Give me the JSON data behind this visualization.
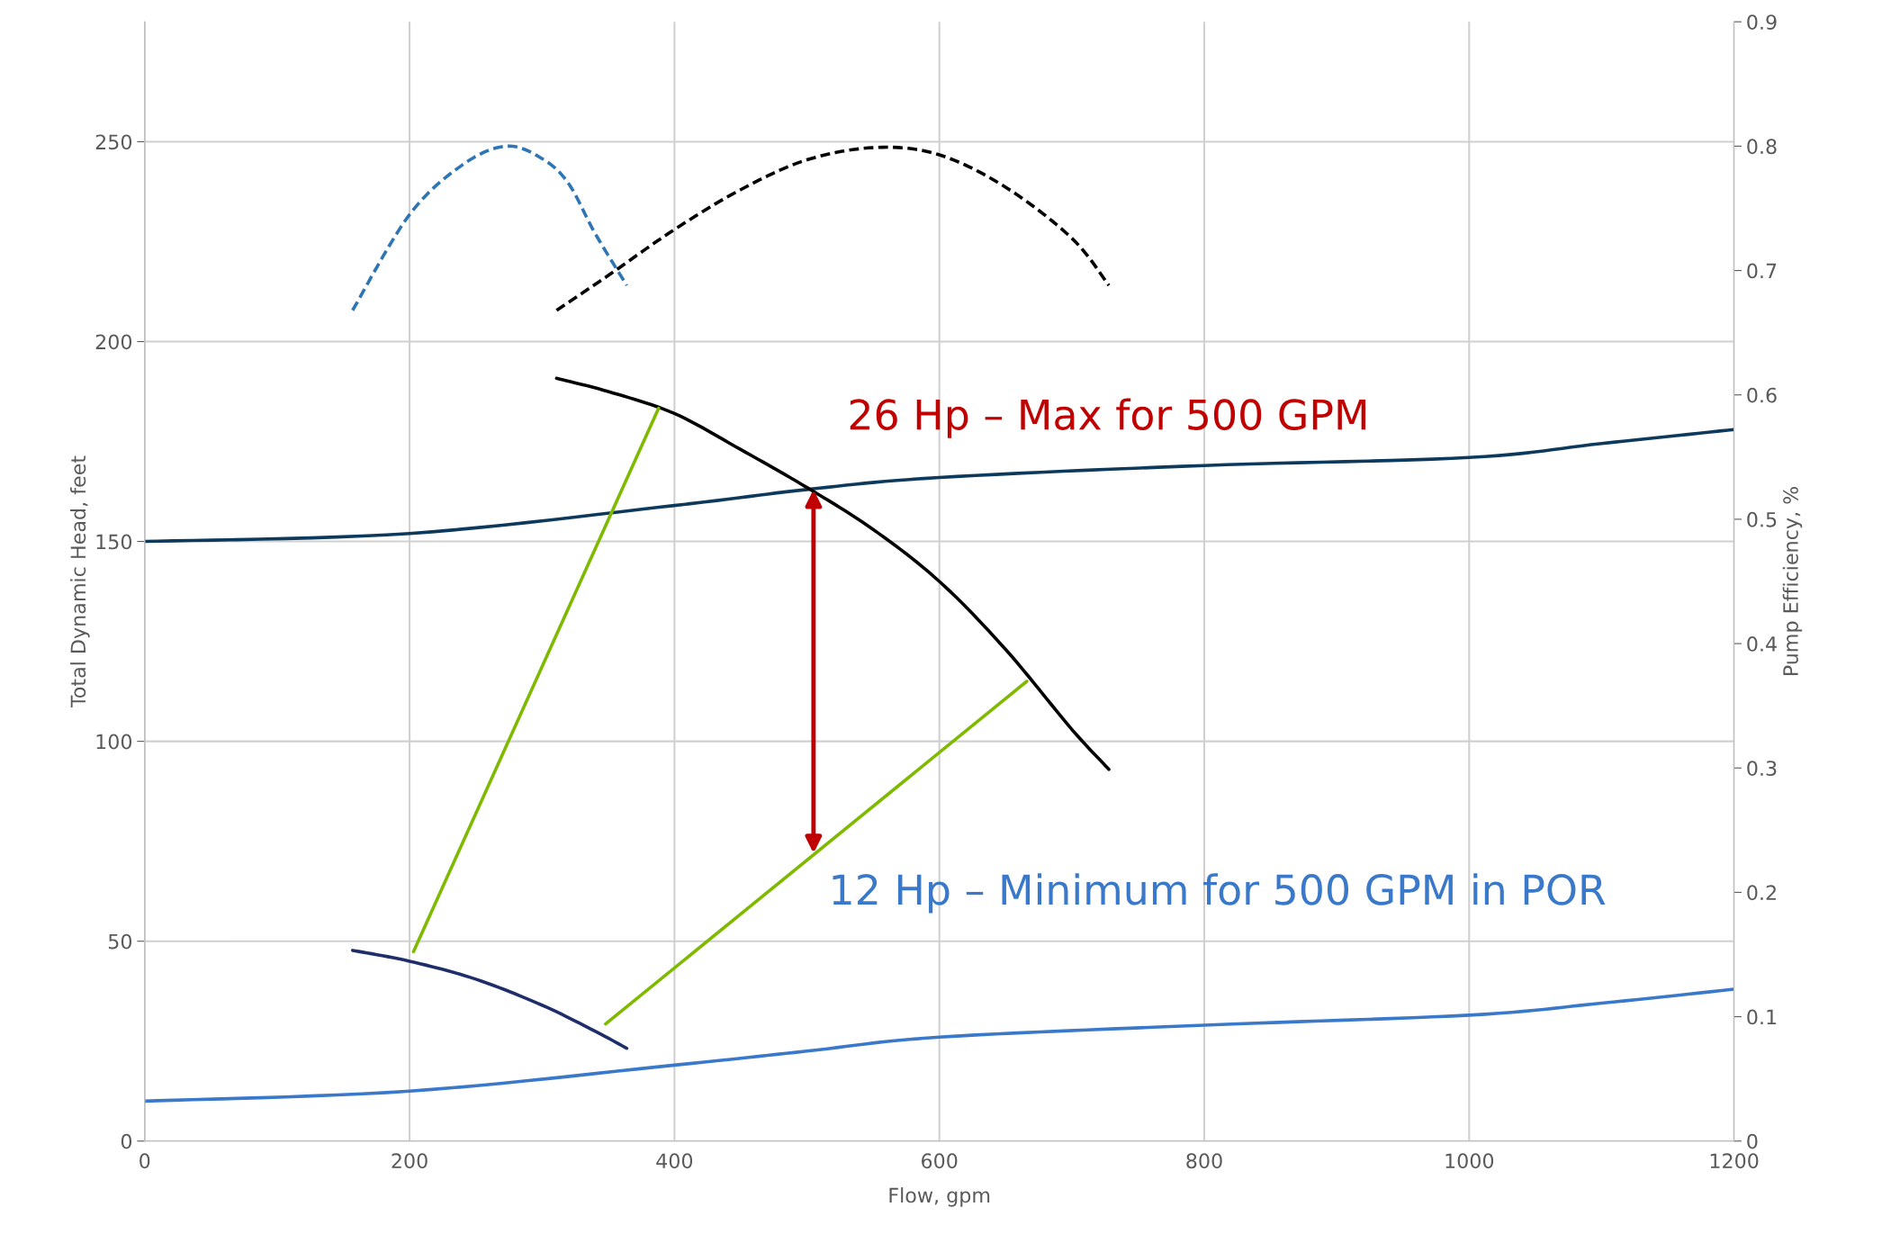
{
  "chart_data": {
    "type": "line",
    "xlabel": "Flow, gpm",
    "ylabel": "Total Dynamic Head, feet",
    "y2label": "Pump Efficiency, %",
    "xlim": [
      0,
      1200
    ],
    "xticks": [
      0,
      200,
      400,
      600,
      800,
      1000,
      1200
    ],
    "ylim": [
      0,
      280
    ],
    "yticks": [
      0,
      50,
      100,
      150,
      200,
      250
    ],
    "y2lim": [
      0,
      0.9
    ],
    "y2ticks": [
      0,
      0.1,
      0.2,
      0.3,
      0.4,
      0.5,
      0.6,
      0.7,
      0.8,
      0.9
    ],
    "grid": true,
    "legend": false,
    "series": [
      {
        "color": "#0d3a5c",
        "x": [
          0,
          200,
          400,
          500,
          600,
          800,
          1000,
          1100,
          1200
        ],
        "values": [
          150,
          152,
          159,
          163,
          166,
          169,
          171,
          174.5,
          178
        ]
      },
      {
        "color": "#3a78c9",
        "x": [
          0,
          200,
          400,
          500,
          600,
          800,
          1000,
          1100,
          1200
        ],
        "values": [
          10,
          12.5,
          19,
          22.5,
          26,
          29,
          31.5,
          34.5,
          38
        ]
      },
      {
        "color": "#000000",
        "x": [
          311,
          350,
          400,
          450,
          500,
          550,
          600,
          650,
          700,
          728
        ],
        "values": [
          190.8,
          187.5,
          182,
          173,
          163.5,
          153,
          140,
          123,
          103,
          93
        ]
      },
      {
        "color": "#1f2d6b",
        "x": [
          157,
          200,
          250,
          300,
          340,
          364
        ],
        "values": [
          47.7,
          45,
          40.5,
          34,
          27.5,
          23.2
        ]
      },
      {
        "axis": "y2",
        "line_style": "dashed",
        "color": "#2e75b6",
        "x": [
          157,
          200,
          240,
          273,
          300,
          320,
          340,
          364
        ],
        "values": [
          0.668,
          0.745,
          0.785,
          0.8,
          0.79,
          0.77,
          0.73,
          0.688
        ]
      },
      {
        "axis": "y2",
        "line_style": "dashed",
        "color": "#000000",
        "x": [
          311,
          350,
          400,
          450,
          500,
          553,
          600,
          650,
          700,
          728
        ],
        "values": [
          0.668,
          0.696,
          0.733,
          0.765,
          0.789,
          0.799,
          0.793,
          0.767,
          0.726,
          0.688
        ]
      },
      {
        "color": "#7fba00",
        "x": [
          203,
          388
        ],
        "values": [
          47.4,
          183.3
        ]
      },
      {
        "color": "#7fba00",
        "x": [
          348,
          666
        ],
        "values": [
          29.3,
          115
        ]
      }
    ],
    "annotations": [
      {
        "text": "26 Hp – Max for 500 GPM",
        "x": 505,
        "y": 163
      },
      {
        "text": "12 Hp – Minimum for 500 GPM in POR",
        "x": 505,
        "y": 72
      }
    ]
  }
}
